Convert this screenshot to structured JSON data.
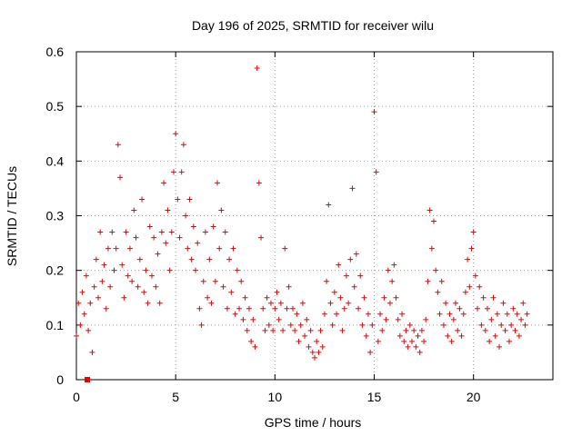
{
  "chart_data": {
    "type": "scatter",
    "title": "Day 196 of 2025, SRMTID for receiver wilu",
    "xlabel": "GPS time / hours",
    "ylabel": "SRMTID / TECUs",
    "xlim": [
      0,
      24
    ],
    "ylim": [
      0,
      0.6
    ],
    "x_ticks": [
      0,
      5,
      10,
      15,
      20
    ],
    "y_ticks": [
      0,
      0.1,
      0.2,
      0.3,
      0.4,
      0.5,
      0.6
    ],
    "x_tick_labels": [
      "0",
      "5",
      "10",
      "15",
      "20"
    ],
    "y_tick_labels": [
      "0",
      "0.1",
      "0.2",
      "0.3",
      "0.4",
      "0.5",
      "0.6"
    ],
    "grid": true,
    "marker": "plus",
    "series": [
      {
        "name": "SRMTID",
        "color": "#ee0000",
        "points": [
          [
            0.0,
            0.08
          ],
          [
            0.1,
            0.14
          ],
          [
            0.2,
            0.1
          ],
          [
            0.3,
            0.16
          ],
          [
            0.4,
            0.12
          ],
          [
            0.5,
            0.19
          ],
          [
            0.6,
            0.09
          ],
          [
            0.7,
            0.14
          ],
          [
            0.8,
            0.05
          ],
          [
            0.9,
            0.17
          ],
          [
            1.0,
            0.22
          ],
          [
            1.1,
            0.15
          ],
          [
            1.2,
            0.27
          ],
          [
            1.3,
            0.18
          ],
          [
            1.4,
            0.21
          ],
          [
            1.5,
            0.13
          ],
          [
            1.6,
            0.24
          ],
          [
            1.7,
            0.17
          ],
          [
            1.8,
            0.27
          ],
          [
            1.9,
            0.2
          ],
          [
            2.0,
            0.24
          ],
          [
            2.1,
            0.43
          ],
          [
            2.2,
            0.37
          ],
          [
            2.3,
            0.21
          ],
          [
            2.4,
            0.15
          ],
          [
            2.5,
            0.27
          ],
          [
            2.6,
            0.19
          ],
          [
            2.7,
            0.24
          ],
          [
            2.8,
            0.18
          ],
          [
            2.9,
            0.31
          ],
          [
            3.0,
            0.26
          ],
          [
            3.1,
            0.17
          ],
          [
            3.2,
            0.22
          ],
          [
            3.3,
            0.33
          ],
          [
            3.4,
            0.16
          ],
          [
            3.5,
            0.2
          ],
          [
            3.6,
            0.14
          ],
          [
            3.7,
            0.28
          ],
          [
            3.8,
            0.19
          ],
          [
            3.9,
            0.26
          ],
          [
            4.0,
            0.17
          ],
          [
            4.1,
            0.23
          ],
          [
            4.2,
            0.14
          ],
          [
            4.3,
            0.27
          ],
          [
            4.4,
            0.36
          ],
          [
            4.5,
            0.25
          ],
          [
            4.6,
            0.31
          ],
          [
            4.7,
            0.2
          ],
          [
            4.8,
            0.27
          ],
          [
            4.9,
            0.38
          ],
          [
            5.0,
            0.45
          ],
          [
            5.1,
            0.33
          ],
          [
            5.2,
            0.26
          ],
          [
            5.3,
            0.38
          ],
          [
            5.4,
            0.43
          ],
          [
            5.5,
            0.3
          ],
          [
            5.6,
            0.24
          ],
          [
            5.7,
            0.33
          ],
          [
            5.8,
            0.22
          ],
          [
            5.9,
            0.28
          ],
          [
            6.0,
            0.2
          ],
          [
            6.1,
            0.25
          ],
          [
            6.2,
            0.13
          ],
          [
            6.3,
            0.1
          ],
          [
            6.4,
            0.18
          ],
          [
            6.5,
            0.27
          ],
          [
            6.6,
            0.15
          ],
          [
            6.7,
            0.22
          ],
          [
            6.8,
            0.14
          ],
          [
            6.9,
            0.28
          ],
          [
            7.0,
            0.18
          ],
          [
            7.1,
            0.36
          ],
          [
            7.2,
            0.24
          ],
          [
            7.3,
            0.31
          ],
          [
            7.4,
            0.17
          ],
          [
            7.5,
            0.27
          ],
          [
            7.6,
            0.13
          ],
          [
            7.7,
            0.22
          ],
          [
            7.8,
            0.16
          ],
          [
            7.9,
            0.24
          ],
          [
            8.0,
            0.12
          ],
          [
            8.1,
            0.2
          ],
          [
            8.2,
            0.13
          ],
          [
            8.3,
            0.18
          ],
          [
            8.4,
            0.11
          ],
          [
            8.5,
            0.15
          ],
          [
            8.6,
            0.09
          ],
          [
            8.7,
            0.13
          ],
          [
            8.8,
            0.07
          ],
          [
            8.9,
            0.11
          ],
          [
            9.0,
            0.06
          ],
          [
            9.1,
            0.57
          ],
          [
            9.2,
            0.36
          ],
          [
            9.3,
            0.26
          ],
          [
            9.4,
            0.13
          ],
          [
            9.5,
            0.09
          ],
          [
            9.6,
            0.15
          ],
          [
            9.7,
            0.1
          ],
          [
            9.8,
            0.14
          ],
          [
            9.9,
            0.09
          ],
          [
            10.0,
            0.13
          ],
          [
            10.1,
            0.16
          ],
          [
            10.2,
            0.11
          ],
          [
            10.3,
            0.14
          ],
          [
            10.4,
            0.09
          ],
          [
            10.5,
            0.24
          ],
          [
            10.6,
            0.13
          ],
          [
            10.7,
            0.17
          ],
          [
            10.8,
            0.1
          ],
          [
            10.9,
            0.13
          ],
          [
            11.0,
            0.09
          ],
          [
            11.1,
            0.12
          ],
          [
            11.2,
            0.07
          ],
          [
            11.3,
            0.1
          ],
          [
            11.4,
            0.14
          ],
          [
            11.5,
            0.08
          ],
          [
            11.6,
            0.11
          ],
          [
            11.7,
            0.06
          ],
          [
            11.8,
            0.09
          ],
          [
            11.9,
            0.05
          ],
          [
            12.0,
            0.04
          ],
          [
            12.1,
            0.07
          ],
          [
            12.2,
            0.05
          ],
          [
            12.3,
            0.09
          ],
          [
            12.4,
            0.06
          ],
          [
            12.5,
            0.12
          ],
          [
            12.6,
            0.18
          ],
          [
            12.7,
            0.32
          ],
          [
            12.8,
            0.14
          ],
          [
            12.9,
            0.1
          ],
          [
            13.0,
            0.16
          ],
          [
            13.1,
            0.12
          ],
          [
            13.2,
            0.21
          ],
          [
            13.3,
            0.15
          ],
          [
            13.4,
            0.09
          ],
          [
            13.5,
            0.13
          ],
          [
            13.6,
            0.19
          ],
          [
            13.7,
            0.14
          ],
          [
            13.8,
            0.22
          ],
          [
            13.9,
            0.35
          ],
          [
            14.0,
            0.17
          ],
          [
            14.1,
            0.23
          ],
          [
            14.2,
            0.13
          ],
          [
            14.3,
            0.19
          ],
          [
            14.4,
            0.1
          ],
          [
            14.5,
            0.15
          ],
          [
            14.6,
            0.08
          ],
          [
            14.7,
            0.12
          ],
          [
            14.8,
            0.05
          ],
          [
            14.9,
            0.1
          ],
          [
            15.0,
            0.49
          ],
          [
            15.1,
            0.38
          ],
          [
            15.2,
            0.07
          ],
          [
            15.3,
            0.12
          ],
          [
            15.4,
            0.09
          ],
          [
            15.5,
            0.15
          ],
          [
            15.6,
            0.11
          ],
          [
            15.7,
            0.2
          ],
          [
            15.8,
            0.14
          ],
          [
            15.9,
            0.18
          ],
          [
            16.0,
            0.21
          ],
          [
            16.1,
            0.15
          ],
          [
            16.2,
            0.11
          ],
          [
            16.3,
            0.08
          ],
          [
            16.4,
            0.12
          ],
          [
            16.5,
            0.07
          ],
          [
            16.6,
            0.09
          ],
          [
            16.7,
            0.06
          ],
          [
            16.8,
            0.1
          ],
          [
            16.9,
            0.07
          ],
          [
            17.0,
            0.09
          ],
          [
            17.1,
            0.06
          ],
          [
            17.2,
            0.08
          ],
          [
            17.3,
            0.05
          ],
          [
            17.4,
            0.09
          ],
          [
            17.5,
            0.07
          ],
          [
            17.6,
            0.11
          ],
          [
            17.7,
            0.18
          ],
          [
            17.8,
            0.31
          ],
          [
            17.9,
            0.24
          ],
          [
            18.0,
            0.29
          ],
          [
            18.1,
            0.2
          ],
          [
            18.2,
            0.16
          ],
          [
            18.3,
            0.12
          ],
          [
            18.4,
            0.18
          ],
          [
            18.5,
            0.1
          ],
          [
            18.6,
            0.14
          ],
          [
            18.7,
            0.08
          ],
          [
            18.8,
            0.12
          ],
          [
            18.9,
            0.07
          ],
          [
            19.0,
            0.11
          ],
          [
            19.1,
            0.14
          ],
          [
            19.2,
            0.09
          ],
          [
            19.3,
            0.13
          ],
          [
            19.4,
            0.08
          ],
          [
            19.5,
            0.12
          ],
          [
            19.6,
            0.16
          ],
          [
            19.7,
            0.22
          ],
          [
            19.8,
            0.17
          ],
          [
            19.9,
            0.24
          ],
          [
            20.0,
            0.27
          ],
          [
            20.1,
            0.19
          ],
          [
            20.2,
            0.13
          ],
          [
            20.3,
            0.17
          ],
          [
            20.4,
            0.1
          ],
          [
            20.5,
            0.15
          ],
          [
            20.6,
            0.09
          ],
          [
            20.7,
            0.13
          ],
          [
            20.8,
            0.07
          ],
          [
            20.9,
            0.11
          ],
          [
            21.0,
            0.15
          ],
          [
            21.1,
            0.08
          ],
          [
            21.2,
            0.12
          ],
          [
            21.3,
            0.06
          ],
          [
            21.4,
            0.1
          ],
          [
            21.5,
            0.14
          ],
          [
            21.6,
            0.09
          ],
          [
            21.7,
            0.12
          ],
          [
            21.8,
            0.07
          ],
          [
            21.9,
            0.1
          ],
          [
            22.0,
            0.13
          ],
          [
            22.1,
            0.09
          ],
          [
            22.2,
            0.12
          ],
          [
            22.3,
            0.08
          ],
          [
            22.4,
            0.11
          ],
          [
            22.5,
            0.14
          ],
          [
            22.6,
            0.1
          ],
          [
            22.7,
            0.12
          ]
        ]
      }
    ],
    "extra_marks": [
      {
        "x": 0.55,
        "y": 0.0,
        "shape": "square"
      }
    ]
  }
}
